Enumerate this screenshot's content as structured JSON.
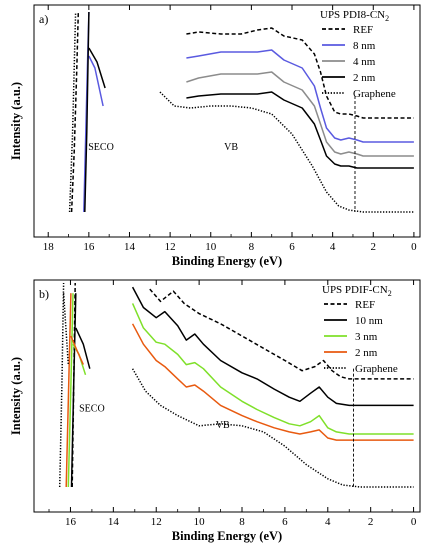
{
  "chart_data": [
    {
      "type": "line",
      "panel_label": "a)",
      "title": "UPS PDI8-CN",
      "title_sub": "2",
      "xlabel": "Binding Energy (eV)",
      "ylabel": "Intensity (a.u.)",
      "xlim": [
        18.7,
        -0.3
      ],
      "x_ticks": [
        18,
        16,
        14,
        12,
        10,
        8,
        6,
        4,
        2,
        0
      ],
      "reversed_x": true,
      "grid": false,
      "legend_position": "top-right",
      "annotations": [
        {
          "text": "SECO",
          "x": 15.4,
          "y": 0.31
        },
        {
          "text": "VB",
          "x": 9.0,
          "y": 0.31
        }
      ],
      "marker_line_x": 2.9,
      "series": [
        {
          "name": "REF",
          "style": "dashed",
          "color": "#000000",
          "vb": [
            [
              11.2,
              0.89
            ],
            [
              10.6,
              0.9
            ],
            [
              9.5,
              0.89
            ],
            [
              8.5,
              0.89
            ],
            [
              7.7,
              0.91
            ],
            [
              7.0,
              0.92
            ],
            [
              6.4,
              0.88
            ],
            [
              5.5,
              0.86
            ],
            [
              4.9,
              0.79
            ],
            [
              4.6,
              0.7
            ],
            [
              4.3,
              0.58
            ],
            [
              3.9,
              0.5
            ],
            [
              3.6,
              0.49
            ],
            [
              3.2,
              0.49
            ],
            [
              2.8,
              0.48
            ],
            [
              2.5,
              0.47
            ],
            [
              0,
              0.47
            ]
          ],
          "seco": [
            [
              16.85,
              0.0
            ],
            [
              16.72,
              0.3
            ],
            [
              16.6,
              0.7
            ],
            [
              16.52,
              1.0
            ]
          ]
        },
        {
          "name": "8 nm",
          "style": "solid",
          "color": "#5a5ae0",
          "vb": [
            [
              11.2,
              0.77
            ],
            [
              10.6,
              0.78
            ],
            [
              9.5,
              0.8
            ],
            [
              8.5,
              0.8
            ],
            [
              7.7,
              0.8
            ],
            [
              7.0,
              0.81
            ],
            [
              6.4,
              0.76
            ],
            [
              5.5,
              0.72
            ],
            [
              4.9,
              0.63
            ],
            [
              4.6,
              0.52
            ],
            [
              4.3,
              0.42
            ],
            [
              3.9,
              0.37
            ],
            [
              3.6,
              0.36
            ],
            [
              3.2,
              0.37
            ],
            [
              2.8,
              0.36
            ],
            [
              2.5,
              0.35
            ],
            [
              0,
              0.35
            ]
          ],
          "seco": [
            [
              16.25,
              0.0
            ],
            [
              16.15,
              0.4
            ],
            [
              16.05,
              0.8
            ],
            [
              16.0,
              1.0
            ]
          ],
          "seco_tail": [
            [
              16.0,
              0.78
            ],
            [
              15.7,
              0.72
            ],
            [
              15.3,
              0.53
            ]
          ]
        },
        {
          "name": "4 nm",
          "style": "solid",
          "color": "#8c8c8c",
          "vb": [
            [
              11.2,
              0.65
            ],
            [
              10.6,
              0.67
            ],
            [
              9.5,
              0.69
            ],
            [
              8.5,
              0.69
            ],
            [
              7.7,
              0.69
            ],
            [
              7.0,
              0.7
            ],
            [
              6.4,
              0.65
            ],
            [
              5.5,
              0.61
            ],
            [
              4.9,
              0.53
            ],
            [
              4.6,
              0.44
            ],
            [
              4.3,
              0.35
            ],
            [
              3.9,
              0.3
            ],
            [
              3.6,
              0.29
            ],
            [
              3.2,
              0.3
            ],
            [
              2.8,
              0.29
            ],
            [
              2.5,
              0.28
            ],
            [
              0,
              0.28
            ]
          ]
        },
        {
          "name": "2 nm",
          "style": "solid",
          "color": "#000000",
          "vb": [
            [
              11.2,
              0.57
            ],
            [
              10.6,
              0.58
            ],
            [
              9.5,
              0.59
            ],
            [
              8.5,
              0.59
            ],
            [
              7.7,
              0.59
            ],
            [
              7.0,
              0.6
            ],
            [
              6.4,
              0.56
            ],
            [
              5.5,
              0.52
            ],
            [
              4.9,
              0.44
            ],
            [
              4.6,
              0.36
            ],
            [
              4.3,
              0.28
            ],
            [
              3.9,
              0.24
            ],
            [
              3.6,
              0.23
            ],
            [
              3.2,
              0.23
            ],
            [
              2.8,
              0.22
            ],
            [
              2.5,
              0.22
            ],
            [
              0,
              0.22
            ]
          ],
          "seco": [
            [
              16.2,
              0.0
            ],
            [
              16.1,
              0.4
            ],
            [
              16.0,
              1.0
            ]
          ],
          "seco_tail": [
            [
              16.0,
              0.82
            ],
            [
              15.6,
              0.75
            ],
            [
              15.2,
              0.62
            ]
          ]
        },
        {
          "name": "Graphene",
          "style": "dotted",
          "color": "#000000",
          "vb": [
            [
              12.5,
              0.6
            ],
            [
              11.8,
              0.53
            ],
            [
              11.0,
              0.52
            ],
            [
              10.0,
              0.53
            ],
            [
              9.0,
              0.53
            ],
            [
              8.0,
              0.52
            ],
            [
              7.0,
              0.49
            ],
            [
              6.0,
              0.39
            ],
            [
              5.0,
              0.23
            ],
            [
              4.3,
              0.1
            ],
            [
              3.7,
              0.03
            ],
            [
              3.2,
              0.01
            ],
            [
              2.5,
              0.0
            ],
            [
              0,
              0.0
            ]
          ],
          "seco": [
            [
              16.95,
              0.0
            ],
            [
              16.8,
              0.4
            ],
            [
              16.65,
              1.0
            ]
          ]
        }
      ]
    },
    {
      "type": "line",
      "panel_label": "b)",
      "title": "UPS PDIF-CN",
      "title_sub": "2",
      "xlabel": "Binding Energy (eV)",
      "ylabel": "Intensity (a.u.)",
      "xlim": [
        17.7,
        -0.3
      ],
      "x_ticks": [
        16,
        14,
        12,
        10,
        8,
        6,
        4,
        2,
        0
      ],
      "reversed_x": true,
      "grid": false,
      "legend_position": "top-right",
      "annotations": [
        {
          "text": "SECO",
          "x": 15.0,
          "y": 0.37
        },
        {
          "text": "VB",
          "x": 8.9,
          "y": 0.29
        }
      ],
      "marker_line_x": 2.8,
      "series": [
        {
          "name": "REF",
          "style": "dashed",
          "color": "#000000",
          "vb": [
            [
              12.3,
              0.97
            ],
            [
              11.8,
              0.91
            ],
            [
              11.2,
              0.96
            ],
            [
              10.7,
              0.9
            ],
            [
              10.0,
              0.85
            ],
            [
              9.0,
              0.8
            ],
            [
              8.0,
              0.74
            ],
            [
              7.0,
              0.68
            ],
            [
              6.0,
              0.62
            ],
            [
              5.2,
              0.57
            ],
            [
              4.6,
              0.59
            ],
            [
              4.2,
              0.62
            ],
            [
              3.8,
              0.57
            ],
            [
              3.4,
              0.54
            ],
            [
              3.0,
              0.53
            ],
            [
              2.5,
              0.53
            ],
            [
              0,
              0.53
            ]
          ],
          "seco": [
            [
              15.92,
              0.0
            ],
            [
              15.85,
              0.5
            ],
            [
              15.78,
              1.0
            ]
          ]
        },
        {
          "name": "10 nm",
          "style": "solid",
          "color": "#000000",
          "vb": [
            [
              13.1,
              0.98
            ],
            [
              12.6,
              0.88
            ],
            [
              12.0,
              0.83
            ],
            [
              11.6,
              0.86
            ],
            [
              11.0,
              0.79
            ],
            [
              10.6,
              0.72
            ],
            [
              10.2,
              0.75
            ],
            [
              9.8,
              0.7
            ],
            [
              9.0,
              0.62
            ],
            [
              8.0,
              0.56
            ],
            [
              7.3,
              0.53
            ],
            [
              6.5,
              0.48
            ],
            [
              5.8,
              0.44
            ],
            [
              5.3,
              0.42
            ],
            [
              4.8,
              0.46
            ],
            [
              4.4,
              0.49
            ],
            [
              4.0,
              0.44
            ],
            [
              3.6,
              0.41
            ],
            [
              3.0,
              0.4
            ],
            [
              2.5,
              0.4
            ],
            [
              0,
              0.4
            ]
          ],
          "seco": [
            [
              15.95,
              0.0
            ],
            [
              15.85,
              0.5
            ],
            [
              15.75,
              0.95
            ]
          ],
          "seco_tail": [
            [
              15.75,
              0.78
            ],
            [
              15.4,
              0.7
            ],
            [
              15.1,
              0.58
            ]
          ]
        },
        {
          "name": "3 nm",
          "style": "solid",
          "color": "#7fe02a",
          "vb": [
            [
              13.1,
              0.9
            ],
            [
              12.6,
              0.78
            ],
            [
              12.0,
              0.71
            ],
            [
              11.6,
              0.7
            ],
            [
              11.0,
              0.65
            ],
            [
              10.6,
              0.6
            ],
            [
              10.2,
              0.61
            ],
            [
              9.8,
              0.58
            ],
            [
              9.0,
              0.49
            ],
            [
              8.0,
              0.42
            ],
            [
              7.3,
              0.38
            ],
            [
              6.5,
              0.34
            ],
            [
              5.8,
              0.31
            ],
            [
              5.3,
              0.3
            ],
            [
              4.8,
              0.32
            ],
            [
              4.4,
              0.35
            ],
            [
              4.0,
              0.29
            ],
            [
              3.6,
              0.27
            ],
            [
              3.0,
              0.26
            ],
            [
              2.5,
              0.26
            ],
            [
              0,
              0.26
            ]
          ],
          "seco": [
            [
              16.1,
              0.0
            ],
            [
              15.98,
              0.5
            ],
            [
              15.88,
              0.95
            ]
          ],
          "seco_tail": [
            [
              15.88,
              0.7
            ],
            [
              15.6,
              0.65
            ],
            [
              15.3,
              0.55
            ]
          ]
        },
        {
          "name": "2 nm",
          "style": "solid",
          "color": "#e85a10",
          "vb": [
            [
              13.1,
              0.8
            ],
            [
              12.6,
              0.7
            ],
            [
              12.0,
              0.62
            ],
            [
              11.6,
              0.59
            ],
            [
              11.0,
              0.53
            ],
            [
              10.6,
              0.49
            ],
            [
              10.2,
              0.5
            ],
            [
              9.8,
              0.47
            ],
            [
              9.0,
              0.4
            ],
            [
              8.0,
              0.35
            ],
            [
              7.3,
              0.32
            ],
            [
              6.5,
              0.29
            ],
            [
              5.8,
              0.27
            ],
            [
              5.3,
              0.26
            ],
            [
              4.8,
              0.27
            ],
            [
              4.4,
              0.28
            ],
            [
              4.0,
              0.24
            ],
            [
              3.6,
              0.23
            ],
            [
              3.0,
              0.23
            ],
            [
              2.5,
              0.23
            ],
            [
              0,
              0.23
            ]
          ],
          "seco": [
            [
              16.2,
              0.0
            ],
            [
              16.08,
              0.5
            ],
            [
              15.98,
              0.95
            ]
          ],
          "seco_tail": [
            [
              15.98,
              0.74
            ],
            [
              15.7,
              0.67
            ],
            [
              15.4,
              0.6
            ]
          ]
        },
        {
          "name": "Graphene",
          "style": "dotted",
          "color": "#000000",
          "vb": [
            [
              13.1,
              0.58
            ],
            [
              12.5,
              0.47
            ],
            [
              11.8,
              0.4
            ],
            [
              11.0,
              0.35
            ],
            [
              10.0,
              0.3
            ],
            [
              9.0,
              0.31
            ],
            [
              8.0,
              0.3
            ],
            [
              7.0,
              0.27
            ],
            [
              6.0,
              0.2
            ],
            [
              5.0,
              0.11
            ],
            [
              4.0,
              0.04
            ],
            [
              3.3,
              0.01
            ],
            [
              2.5,
              0.0
            ],
            [
              0,
              0.0
            ]
          ],
          "seco": [
            [
              16.5,
              0.0
            ],
            [
              16.4,
              0.5
            ],
            [
              16.32,
              1.0
            ]
          ],
          "seco_tail": [
            [
              16.32,
              0.95
            ],
            [
              16.1,
              0.6
            ]
          ]
        }
      ]
    }
  ]
}
